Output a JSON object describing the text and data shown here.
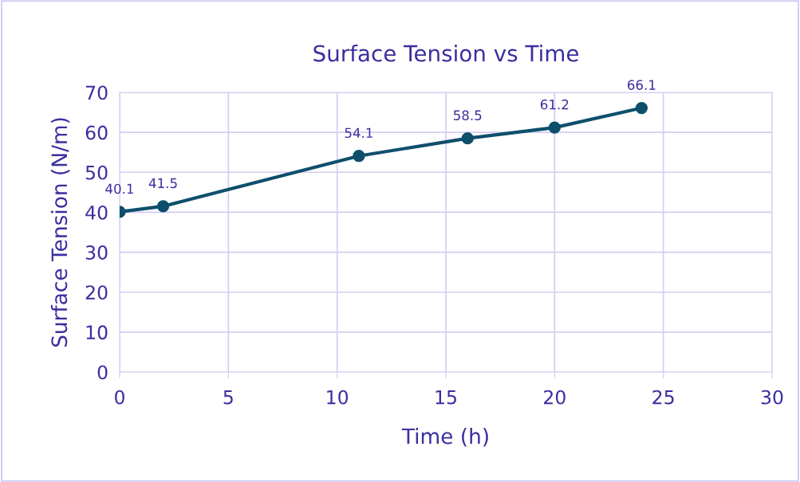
{
  "chart_data": {
    "type": "line",
    "title": "Surface Tension vs Time",
    "xlabel": "Time (h)",
    "ylabel": "Surface Tension (N/m)",
    "x": [
      0,
      2,
      11,
      16,
      20,
      24
    ],
    "series": [
      {
        "color": "#0e4f6c",
        "values": [
          40.1,
          41.5,
          54.1,
          58.5,
          61.2,
          66.1
        ]
      }
    ],
    "xlim": [
      0,
      30
    ],
    "xticks": [
      0,
      5,
      10,
      15,
      20,
      25,
      30
    ],
    "ylim": [
      0,
      70
    ],
    "yticks": [
      0,
      10,
      20,
      30,
      40,
      50,
      60,
      70
    ],
    "grid": true,
    "marker": "circle",
    "line_style": "solid",
    "data_labels": true
  }
}
